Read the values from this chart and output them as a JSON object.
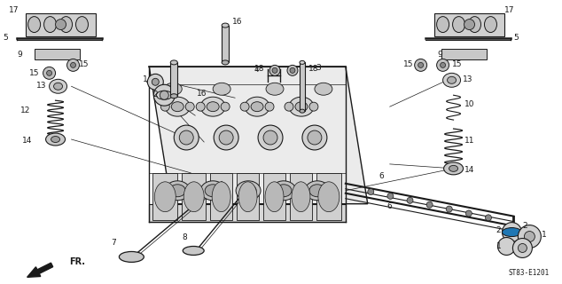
{
  "background_color": "#ffffff",
  "line_color": "#1a1a1a",
  "text_color": "#1a1a1a",
  "figsize": [
    6.34,
    3.2
  ],
  "dpi": 100,
  "diagram_ref": "ST83-E1201"
}
